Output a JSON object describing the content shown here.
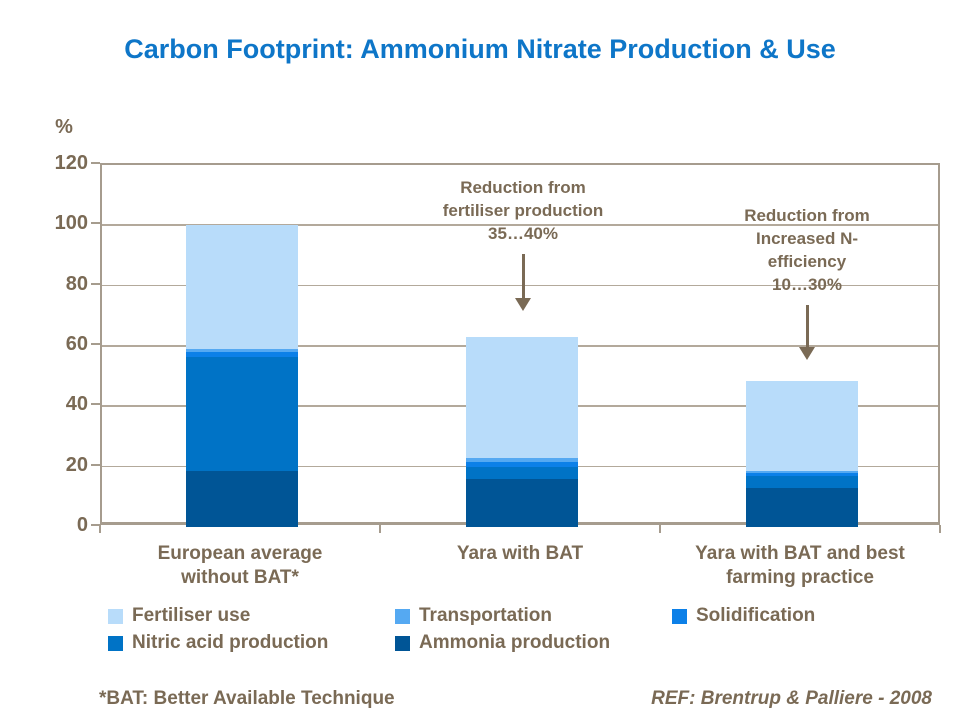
{
  "title": "Carbon Footprint: Ammonium Nitrate Production & Use",
  "colors": {
    "title_blue": "#0e76c8",
    "text_brown": "#7a6a55",
    "axis_line": "#a69c8e",
    "gridline": "#b3a99b"
  },
  "annotations": [
    {
      "lines": [
        "Reduction from",
        "fertiliser production",
        "35…40%"
      ]
    },
    {
      "lines": [
        "Reduction from",
        "Increased N-",
        "efficiency",
        "10…30%"
      ]
    }
  ],
  "footer": {
    "left_note": "*BAT: Better Available Technique",
    "right_ref": "REF: Brentrup & Palliere - 2008"
  },
  "chart_data": {
    "type": "bar",
    "stacked": true,
    "title": "Carbon Footprint: Ammonium Nitrate Production & Use",
    "xlabel": "",
    "ylabel": "%",
    "ylim": [
      0,
      120
    ],
    "ytick_step": 20,
    "yticks": [
      0,
      20,
      40,
      60,
      80,
      100,
      120
    ],
    "grid": true,
    "legend_position": "bottom",
    "categories": [
      "European average\nwithout BAT*",
      "Yara with BAT",
      "Yara with BAT and best\nfarming practice"
    ],
    "totals": [
      100,
      63,
      48.5
    ],
    "series": [
      {
        "name": "Ammonia production",
        "color": "#005596",
        "values": [
          18.5,
          16,
          13
        ]
      },
      {
        "name": "Nitric acid production",
        "color": "#0073c6",
        "values": [
          38,
          4,
          4
        ]
      },
      {
        "name": "Solidification",
        "color": "#0c80e8",
        "values": [
          1.5,
          1.5,
          0.75
        ]
      },
      {
        "name": "Transportation",
        "color": "#55a9f2",
        "values": [
          1,
          1.5,
          0.75
        ]
      },
      {
        "name": "Fertiliser use",
        "color": "#b8dcfa",
        "values": [
          41,
          40,
          30
        ]
      }
    ],
    "legend_order": [
      "Fertiliser use",
      "Transportation",
      "Solidification",
      "Nitric acid production",
      "Ammonia production"
    ]
  }
}
